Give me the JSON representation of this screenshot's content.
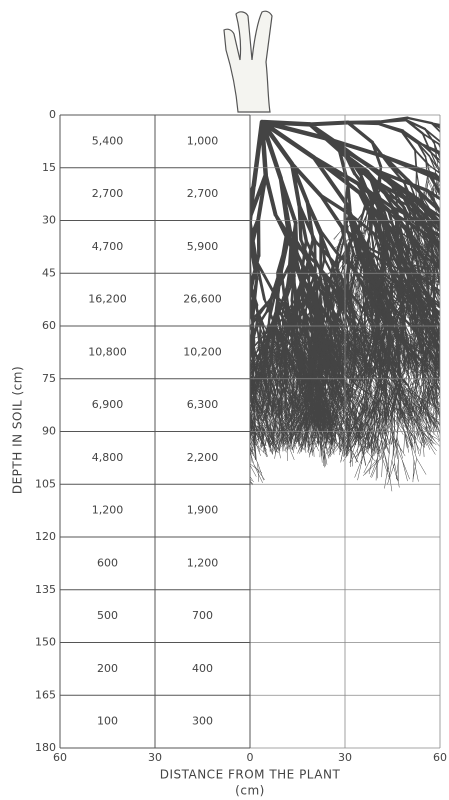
{
  "y_axis": {
    "label": "DEPTH IN SOIL (cm)",
    "ticks": [
      0,
      15,
      30,
      45,
      60,
      75,
      90,
      105,
      120,
      135,
      150,
      165,
      180
    ]
  },
  "x_axis": {
    "label": "DISTANCE FROM THE PLANT",
    "unit": "(cm)",
    "ticks": [
      60,
      30,
      0,
      30,
      60
    ]
  },
  "table": {
    "rows": [
      [
        "5,400",
        "1,000"
      ],
      [
        "2,700",
        "2,700"
      ],
      [
        "4,700",
        "5,900"
      ],
      [
        "16,200",
        "26,600"
      ],
      [
        "10,800",
        "10,200"
      ],
      [
        "6,900",
        "6,300"
      ],
      [
        "4,800",
        "2,200"
      ],
      [
        "1,200",
        "1,900"
      ],
      [
        "600",
        "1,200"
      ],
      [
        "500",
        "700"
      ],
      [
        "200",
        "400"
      ],
      [
        "100",
        "300"
      ]
    ]
  }
}
